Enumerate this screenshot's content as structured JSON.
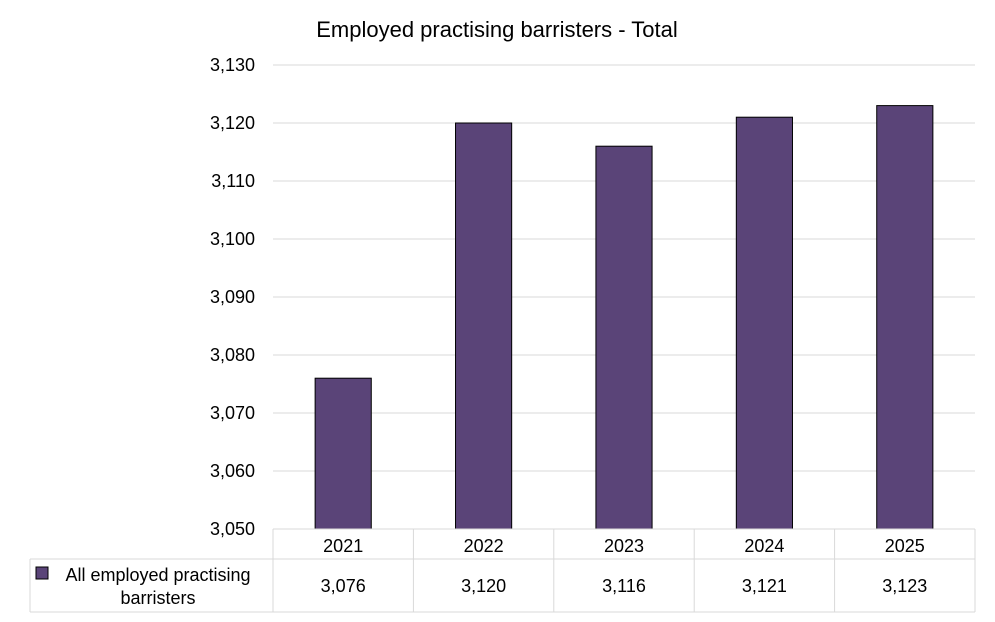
{
  "chart_data": {
    "type": "bar",
    "title": "Employed practising barristers - Total",
    "categories": [
      "2021",
      "2022",
      "2023",
      "2024",
      "2025"
    ],
    "series": [
      {
        "name": "All employed practising barristers",
        "values": [
          3076,
          3120,
          3116,
          3121,
          3123
        ],
        "labels": [
          "3,076",
          "3,120",
          "3,116",
          "3,121",
          "3,123"
        ],
        "color": "#5a4478"
      }
    ],
    "ylim": [
      3050,
      3130
    ],
    "yticks": [
      "3,050",
      "3,060",
      "3,070",
      "3,080",
      "3,090",
      "3,100",
      "3,110",
      "3,120",
      "3,130"
    ],
    "ystep": 10,
    "grid": true,
    "legend": "data-table",
    "gridColor": "#d9d9d9",
    "barOutline": "#000000"
  }
}
